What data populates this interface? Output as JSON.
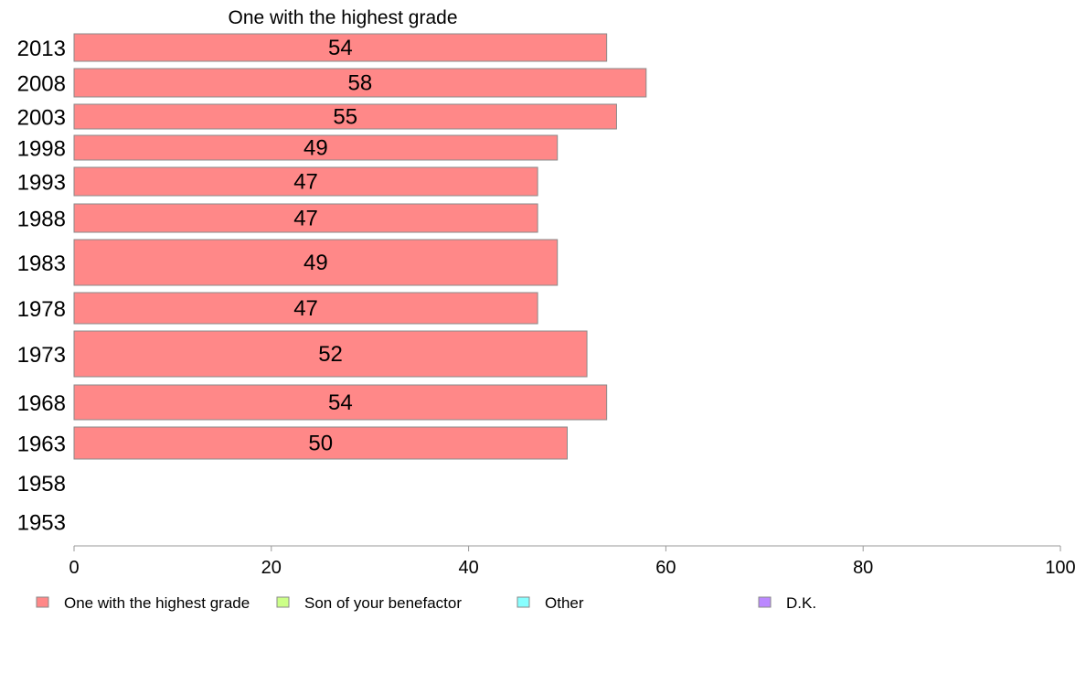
{
  "chart_data": {
    "type": "bar",
    "orientation": "horizontal",
    "stacked": true,
    "title": "One with the highest grade",
    "categories": [
      "2013",
      "2008",
      "2003",
      "1998",
      "1993",
      "1988",
      "1983",
      "1978",
      "1973",
      "1968",
      "1963",
      "1958",
      "1953"
    ],
    "series": [
      {
        "name": "One with the highest grade",
        "color": "#ff8888",
        "values": [
          54,
          58,
          55,
          49,
          47,
          47,
          49,
          47,
          52,
          54,
          50,
          null,
          null
        ]
      },
      {
        "name": "Son of your benefactor",
        "color": "#ccff88",
        "values": [
          null,
          null,
          null,
          null,
          null,
          null,
          null,
          null,
          null,
          null,
          null,
          null,
          null
        ]
      },
      {
        "name": "Other",
        "color": "#88ffff",
        "values": [
          null,
          null,
          null,
          null,
          null,
          null,
          null,
          null,
          null,
          null,
          null,
          null,
          null
        ]
      },
      {
        "name": "D.K.",
        "color": "#bb88ff",
        "values": [
          null,
          null,
          null,
          null,
          null,
          null,
          null,
          null,
          null,
          null,
          null,
          null,
          null
        ]
      }
    ],
    "xlim": [
      0,
      100
    ],
    "xticks": [
      0,
      20,
      40,
      60,
      80,
      100
    ],
    "xlabel": "",
    "ylabel": "",
    "grid": false,
    "legend_position": "bottom"
  }
}
